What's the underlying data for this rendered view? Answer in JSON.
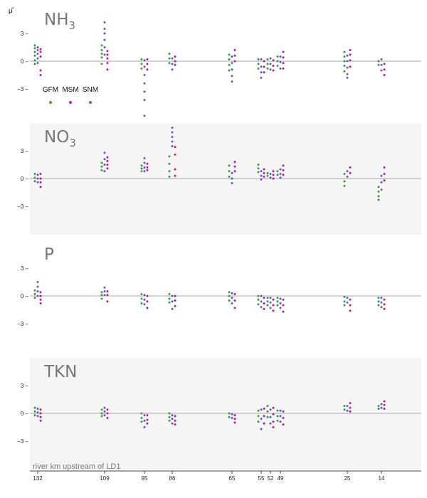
{
  "chart_data": {
    "type": "scatter",
    "ylabel": "μ̂",
    "xlabel": "river km upstream of LD1",
    "x_ticks": [
      "132",
      "109",
      "95",
      "86",
      "65",
      "55",
      "52",
      "49",
      "25",
      "14"
    ],
    "y_ticks": [
      "3 –",
      "0 –",
      "−3 –"
    ],
    "ylim": [
      -6,
      6
    ],
    "grid": false,
    "legend": {
      "position": "top-left of first panel",
      "entries": [
        "GFM",
        "MSM",
        "SNM"
      ]
    },
    "colors": {
      "GFM": "#3a9a3a",
      "MSM": "#c0188a",
      "SNM": "#5a5ad8"
    },
    "panels": [
      {
        "name": "NH3",
        "title": "NH",
        "subscript": "3",
        "shaded": false,
        "groups": [
          {
            "x": "132",
            "GFM": [
              1.7,
              1.4,
              1.0,
              0.6,
              0.1,
              -0.3
            ],
            "MSM": [
              1.3,
              1.0,
              0.5,
              -1.0,
              -1.5
            ],
            "SNM": [
              1.5,
              1.2,
              0.8,
              0.3,
              -0.2
            ]
          },
          {
            "x": "109",
            "GFM": [
              1.7,
              1.2,
              0.8,
              0.4,
              -0.3
            ],
            "MSM": [
              1.1,
              0.7,
              0.3,
              -0.2,
              -0.9
            ],
            "SNM": [
              4.2,
              3.5,
              3.0,
              2.3,
              1.5,
              0.7
            ]
          },
          {
            "x": "95",
            "GFM": [
              0.2,
              -0.3,
              -0.8
            ],
            "MSM": [
              0.2,
              -0.3,
              -0.9
            ],
            "SNM": [
              0.1,
              -0.6,
              -1.5,
              -2.4,
              -3.3,
              -4.2,
              -5.9
            ]
          },
          {
            "x": "86",
            "GFM": [
              0.8,
              0.3,
              -0.2
            ],
            "MSM": [
              0.5,
              0.0,
              -0.4
            ],
            "SNM": [
              0.3,
              -0.3,
              -0.9
            ]
          },
          {
            "x": "65",
            "GFM": [
              0.7,
              0.2,
              -0.4,
              -1.0
            ],
            "MSM": [
              1.2,
              0.6,
              0.0
            ],
            "SNM": [
              0.5,
              -0.2,
              -0.9,
              -1.6,
              -2.2
            ]
          },
          {
            "x": "55",
            "GFM": [
              0.2,
              -0.3,
              -0.8
            ],
            "MSM": [
              0.0,
              -0.6,
              -1.2
            ],
            "SNM": [
              0.2,
              -0.6,
              -1.2,
              -1.8
            ]
          },
          {
            "x": "52",
            "GFM": [
              0.2,
              -0.3,
              -0.8
            ],
            "MSM": [
              0.1,
              -0.5,
              -1.0
            ],
            "SNM": [
              0.3,
              -0.3,
              -0.9
            ]
          },
          {
            "x": "49",
            "GFM": [
              0.5,
              0.0,
              -0.5
            ],
            "MSM": [
              1.0,
              0.4,
              -0.2,
              -0.8
            ],
            "SNM": [
              0.5,
              -0.1,
              -0.8
            ]
          },
          {
            "x": "25",
            "GFM": [
              1.0,
              0.5,
              0.0,
              -0.5,
              -1.1
            ],
            "MSM": [
              1.2,
              0.7,
              0.1,
              -0.6
            ],
            "SNM": [
              0.6,
              0.0,
              -0.7,
              -1.4,
              -1.8
            ]
          },
          {
            "x": "14",
            "GFM": [
              0.0,
              -0.4
            ],
            "MSM": [
              -0.3,
              -0.9,
              -1.5
            ],
            "SNM": [
              0.2,
              -0.4,
              -1.0
            ]
          }
        ]
      },
      {
        "name": "NO3",
        "title": "NO",
        "subscript": "3",
        "shaded": true,
        "groups": [
          {
            "x": "132",
            "GFM": [
              0.5,
              0.1,
              -0.3
            ],
            "MSM": [
              0.5,
              0.0,
              -0.4,
              -0.9
            ],
            "SNM": [
              0.4,
              0.0,
              -0.4
            ]
          },
          {
            "x": "109",
            "GFM": [
              1.7,
              1.3,
              0.9
            ],
            "MSM": [
              2.3,
              1.9,
              1.5,
              1.1
            ],
            "SNM": [
              2.8,
              2.1,
              1.5,
              0.8
            ]
          },
          {
            "x": "95",
            "GFM": [
              1.4,
              1.1,
              0.8
            ],
            "MSM": [
              1.6,
              1.2,
              0.9
            ],
            "SNM": [
              2.2,
              1.7,
              1.2,
              0.8
            ]
          },
          {
            "x": "86",
            "GFM": [
              2.4,
              1.6,
              0.8,
              0.2
            ],
            "MSM": [
              3.4,
              2.6,
              1.0,
              0.3
            ],
            "SNM": [
              5.5,
              5.0,
              4.5,
              4.0,
              3.5
            ]
          },
          {
            "x": "65",
            "GFM": [
              1.4,
              0.8,
              0.2
            ],
            "MSM": [
              1.8,
              1.3,
              0.8
            ],
            "SNM": [
              0.6,
              0.0,
              -0.5
            ]
          },
          {
            "x": "55",
            "GFM": [
              1.5,
              1.1,
              0.7
            ],
            "MSM": [
              1.0,
              0.6,
              0.2
            ],
            "SNM": [
              0.8,
              0.3,
              -0.1
            ]
          },
          {
            "x": "52",
            "GFM": [
              0.6,
              0.3
            ],
            "MSM": [
              0.8,
              0.4,
              0.0
            ],
            "SNM": [
              0.5,
              0.1
            ]
          },
          {
            "x": "49",
            "GFM": [
              0.8,
              0.4
            ],
            "MSM": [
              1.4,
              0.9,
              0.4
            ],
            "SNM": [
              1.0,
              0.5,
              0.1
            ]
          },
          {
            "x": "25",
            "GFM": [
              0.5,
              -0.3,
              -0.8
            ],
            "MSM": [
              1.2,
              0.6
            ],
            "SNM": [
              0.8,
              0.2
            ]
          },
          {
            "x": "14",
            "GFM": [
              -0.9,
              -1.4,
              -1.9,
              -2.3
            ],
            "MSM": [
              1.2,
              0.5,
              -0.2
            ],
            "SNM": [
              0.3,
              -0.4,
              -1.2
            ]
          }
        ]
      },
      {
        "name": "P",
        "title": "P",
        "subscript": "",
        "shaded": false,
        "groups": [
          {
            "x": "132",
            "GFM": [
              0.6,
              0.2,
              -0.2
            ],
            "MSM": [
              0.4,
              0.0,
              -0.4,
              -0.8
            ],
            "SNM": [
              1.5,
              1.0,
              0.5,
              0.0
            ]
          },
          {
            "x": "109",
            "GFM": [
              0.4,
              0.1,
              -0.3
            ],
            "MSM": [
              0.5,
              0.1,
              -0.6
            ],
            "SNM": [
              0.9,
              0.5,
              0.1
            ]
          },
          {
            "x": "95",
            "GFM": [
              0.2,
              -0.3,
              -0.8
            ],
            "MSM": [
              0.0,
              -0.6,
              -1.3
            ],
            "SNM": [
              0.1,
              -0.4,
              -0.9
            ]
          },
          {
            "x": "86",
            "GFM": [
              0.2,
              -0.3,
              -0.7
            ],
            "MSM": [
              0.0,
              -0.5,
              -1.1
            ],
            "SNM": [
              0.0,
              -0.6,
              -1.4
            ]
          },
          {
            "x": "65",
            "GFM": [
              0.4,
              0.0,
              -0.5
            ],
            "MSM": [
              0.2,
              -0.5,
              -1.3
            ],
            "SNM": [
              0.3,
              -0.2,
              -0.8
            ]
          },
          {
            "x": "55",
            "GFM": [
              0.0,
              -0.4,
              -0.9
            ],
            "MSM": [
              -0.2,
              -0.8,
              -1.4
            ],
            "SNM": [
              0.0,
              -0.6,
              -1.2
            ]
          },
          {
            "x": "52",
            "GFM": [
              -0.2,
              -0.6,
              -1.0
            ],
            "MSM": [
              -0.4,
              -1.0,
              -1.6
            ],
            "SNM": [
              -0.2,
              -0.7,
              -1.3
            ]
          },
          {
            "x": "49",
            "GFM": [
              -0.2,
              -0.6,
              -1.0
            ],
            "MSM": [
              -0.4,
              -1.0,
              -1.7
            ],
            "SNM": [
              -0.3,
              -0.8,
              -1.3
            ]
          },
          {
            "x": "25",
            "GFM": [
              -0.1,
              -0.6,
              -1.0
            ],
            "MSM": [
              -0.4,
              -1.0,
              -1.6
            ],
            "SNM": [
              -0.2,
              -0.7
            ]
          },
          {
            "x": "14",
            "GFM": [
              -0.2,
              -0.6,
              -1.0
            ],
            "MSM": [
              -0.4,
              -0.9,
              -1.4
            ],
            "SNM": [
              -0.2,
              -0.7,
              -1.2
            ]
          }
        ]
      },
      {
        "name": "TKN",
        "title": "TKN",
        "subscript": "",
        "shaded": true,
        "groups": [
          {
            "x": "132",
            "GFM": [
              0.6,
              0.2,
              -0.2
            ],
            "MSM": [
              0.4,
              0.0,
              -0.4,
              -0.8
            ],
            "SNM": [
              0.5,
              0.1,
              -0.3
            ]
          },
          {
            "x": "109",
            "GFM": [
              0.4,
              0.0,
              -0.3
            ],
            "MSM": [
              0.4,
              0.0,
              -0.5
            ],
            "SNM": [
              0.6,
              0.2,
              -0.2
            ]
          },
          {
            "x": "95",
            "GFM": [
              0.0,
              -0.5,
              -0.9
            ],
            "MSM": [
              -0.2,
              -0.7,
              -1.1
            ],
            "SNM": [
              -0.2,
              -0.8,
              -1.5
            ]
          },
          {
            "x": "86",
            "GFM": [
              0.0,
              -0.4,
              -0.8
            ],
            "MSM": [
              -0.3,
              -0.8,
              -1.2
            ],
            "SNM": [
              -0.2,
              -0.6,
              -1.1
            ]
          },
          {
            "x": "65",
            "GFM": [
              0.0,
              -0.4
            ],
            "MSM": [
              -0.2,
              -0.6,
              -1.0
            ],
            "SNM": [
              -0.1,
              -0.5
            ]
          },
          {
            "x": "55",
            "GFM": [
              0.3,
              -0.3,
              -0.9
            ],
            "MSM": [
              0.5,
              -0.3,
              -1.1
            ],
            "SNM": [
              0.4,
              -0.6,
              -1.7
            ]
          },
          {
            "x": "52",
            "GFM": [
              0.8,
              0.2,
              -0.4
            ],
            "MSM": [
              0.6,
              -0.1,
              -0.9,
              -1.5
            ],
            "SNM": [
              0.4,
              -0.4,
              -1.1
            ]
          },
          {
            "x": "49",
            "GFM": [
              0.3,
              -0.3,
              -0.8
            ],
            "MSM": [
              0.2,
              -0.5,
              -1.2
            ],
            "SNM": [
              0.3,
              -0.3,
              -0.9
            ]
          },
          {
            "x": "25",
            "GFM": [
              0.8,
              0.4
            ],
            "MSM": [
              1.1,
              0.6,
              0.2
            ],
            "SNM": [
              0.8,
              0.3
            ]
          },
          {
            "x": "14",
            "GFM": [
              0.8,
              0.5
            ],
            "MSM": [
              1.3,
              0.9,
              0.5
            ],
            "SNM": [
              1.0,
              0.6
            ]
          }
        ]
      }
    ]
  }
}
